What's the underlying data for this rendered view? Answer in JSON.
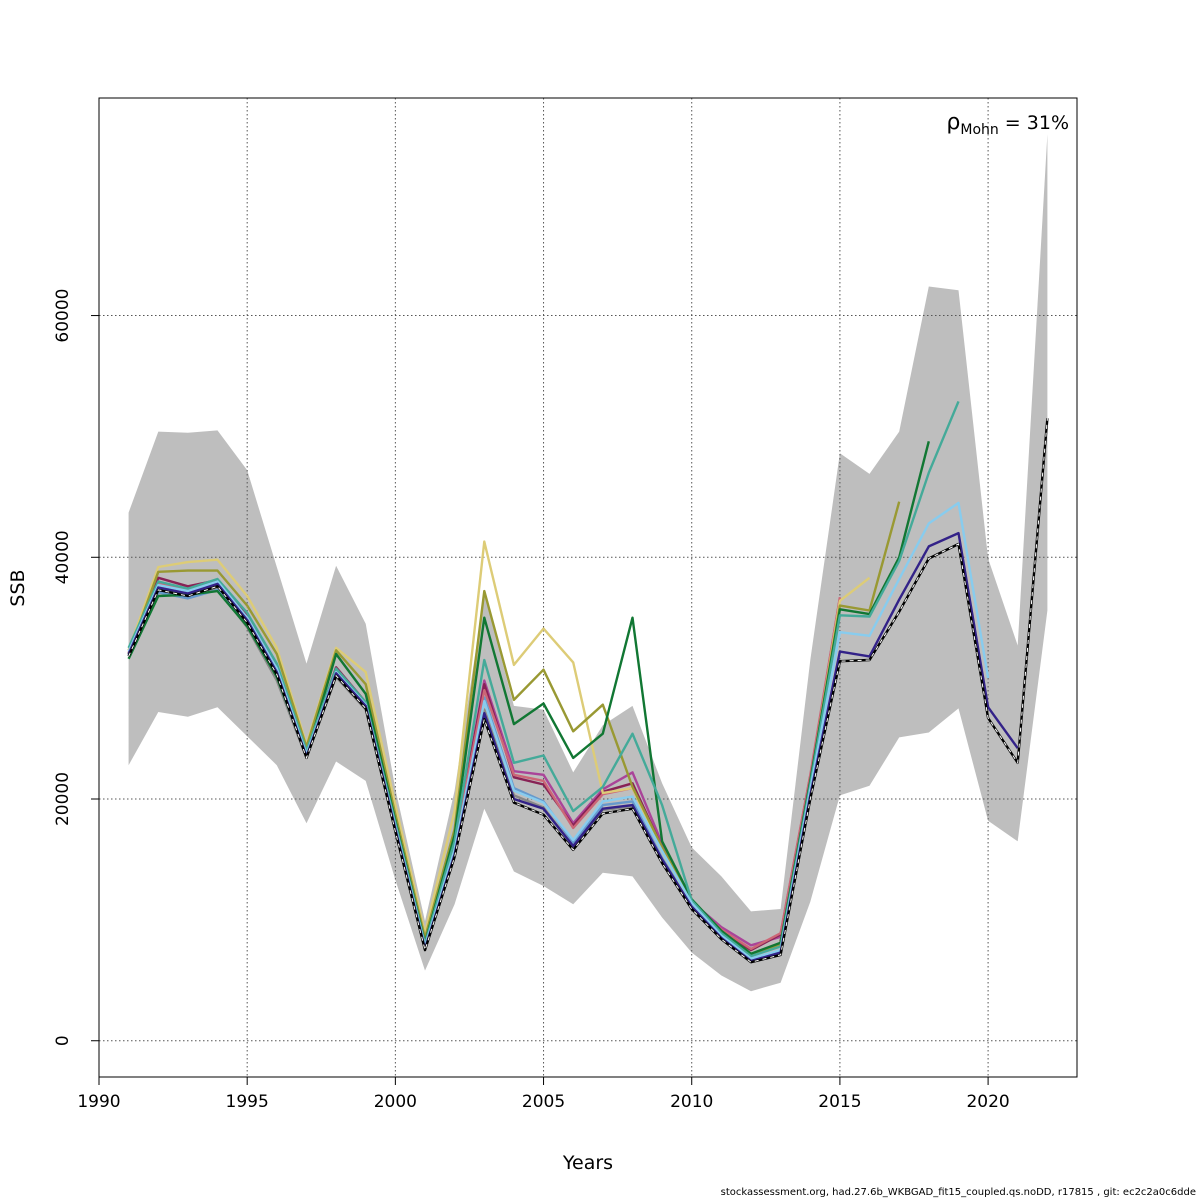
{
  "chart_data": {
    "type": "line",
    "title": "",
    "xlabel": "Years",
    "ylabel": "SSB",
    "xlim": [
      1990,
      2023
    ],
    "ylim": [
      -3000,
      78000
    ],
    "x_ticks": [
      1990,
      1995,
      2000,
      2005,
      2010,
      2015,
      2020
    ],
    "y_ticks": [
      0,
      20000,
      40000,
      60000
    ],
    "grid": true,
    "annotation": {
      "symbol": "ρ",
      "subscript": "Mohn",
      "text": " = 31%"
    },
    "footer": "stockassessment.org, had.27.6b_WKBGAD_fit15_coupled.qs.noDD, r17815 , git: ec2c2a0c6dde",
    "band": {
      "x": [
        1991,
        1992,
        1993,
        1994,
        1995,
        1996,
        1997,
        1998,
        1999,
        2000,
        2001,
        2002,
        2003,
        2004,
        2005,
        2006,
        2007,
        2008,
        2009,
        2010,
        2011,
        2012,
        2013,
        2014,
        2015,
        2016,
        2017,
        2018,
        2019,
        2020,
        2021,
        2022
      ],
      "upper": [
        43700,
        50400,
        50300,
        50500,
        47200,
        39200,
        31200,
        39300,
        34500,
        20800,
        9900,
        20700,
        37000,
        27700,
        27400,
        22200,
        26100,
        27700,
        21300,
        16000,
        13600,
        10700,
        10900,
        31500,
        48600,
        46900,
        50400,
        62400,
        62100,
        39900,
        32700,
        75000
      ],
      "lower": [
        22800,
        27200,
        26800,
        27600,
        25200,
        22800,
        18000,
        23100,
        21500,
        13300,
        5800,
        11300,
        19200,
        14000,
        12800,
        11300,
        13900,
        13600,
        10200,
        7300,
        5400,
        4100,
        4800,
        11500,
        20300,
        21100,
        25100,
        25500,
        27500,
        18200,
        16500,
        35600
      ]
    },
    "series": [
      {
        "color": "#000000",
        "dashed_overlay": true,
        "x": [
          1991,
          1992,
          1993,
          1994,
          1995,
          1996,
          1997,
          1998,
          1999,
          2000,
          2001,
          2002,
          2003,
          2004,
          2005,
          2006,
          2007,
          2008,
          2009,
          2010,
          2011,
          2012,
          2013,
          2014,
          2015,
          2016,
          2017,
          2018,
          2019,
          2020,
          2021,
          2022
        ],
        "y": [
          31800,
          37300,
          36800,
          37600,
          34600,
          30300,
          23400,
          30200,
          27500,
          17300,
          7500,
          15200,
          26600,
          19700,
          18700,
          15800,
          18800,
          19200,
          14700,
          10900,
          8400,
          6500,
          7100,
          20000,
          31400,
          31500,
          35500,
          39900,
          41100,
          26700,
          23000,
          51500
        ]
      },
      {
        "color": "#332288",
        "x": [
          1991,
          1992,
          1993,
          1994,
          1995,
          1996,
          1997,
          1998,
          1999,
          2000,
          2001,
          2002,
          2003,
          2004,
          2005,
          2006,
          2007,
          2008,
          2009,
          2010,
          2011,
          2012,
          2013,
          2014,
          2015,
          2016,
          2017,
          2018,
          2019,
          2020,
          2021
        ],
        "y": [
          32000,
          37500,
          37000,
          37800,
          34800,
          30500,
          23500,
          30400,
          27700,
          17500,
          7600,
          15400,
          27100,
          20000,
          19200,
          16100,
          19200,
          19500,
          15000,
          11100,
          8500,
          6600,
          7300,
          20300,
          32200,
          31800,
          36500,
          40900,
          42000,
          27600,
          24200
        ]
      },
      {
        "color": "#88CCEE",
        "x": [
          1991,
          1992,
          1993,
          1994,
          1995,
          1996,
          1997,
          1998,
          1999,
          2000,
          2001,
          2002,
          2003,
          2004,
          2005,
          2006,
          2007,
          2008,
          2009,
          2010,
          2011,
          2012,
          2013,
          2014,
          2015,
          2016,
          2017,
          2018,
          2019,
          2020
        ],
        "y": [
          32200,
          37700,
          37200,
          38000,
          35000,
          30800,
          23700,
          30500,
          27800,
          17700,
          7800,
          15800,
          28100,
          20700,
          19700,
          16600,
          19800,
          20200,
          15700,
          11400,
          8700,
          6800,
          7500,
          20800,
          33800,
          33500,
          38200,
          42800,
          44500,
          30000
        ]
      },
      {
        "color": "#44AA99",
        "x": [
          1991,
          1992,
          1993,
          1994,
          1995,
          1996,
          1997,
          1998,
          1999,
          2000,
          2001,
          2002,
          2003,
          2004,
          2005,
          2006,
          2007,
          2008,
          2009,
          2010,
          2011,
          2012,
          2013,
          2014,
          2015,
          2016,
          2017,
          2018,
          2019
        ],
        "y": [
          32500,
          38000,
          37400,
          38200,
          35400,
          31200,
          24000,
          30800,
          28000,
          18000,
          8000,
          16500,
          31500,
          23000,
          23600,
          19000,
          21000,
          25400,
          19500,
          11600,
          8900,
          7000,
          7800,
          21200,
          35200,
          35100,
          39700,
          47000,
          52900
        ]
      },
      {
        "color": "#117733",
        "x": [
          1991,
          1992,
          1993,
          1994,
          1995,
          1996,
          1997,
          1998,
          1999,
          2000,
          2001,
          2002,
          2003,
          2004,
          2005,
          2006,
          2007,
          2008,
          2009,
          2010,
          2011,
          2012,
          2013,
          2014,
          2015,
          2016,
          2017,
          2018
        ],
        "y": [
          31600,
          36800,
          36900,
          37200,
          34300,
          30100,
          23600,
          32000,
          28700,
          18200,
          8100,
          17000,
          35000,
          26200,
          27900,
          23400,
          25400,
          35000,
          16500,
          11700,
          9100,
          7200,
          8100,
          21500,
          35700,
          35300,
          40000,
          49600
        ]
      },
      {
        "color": "#999933",
        "x": [
          1991,
          1992,
          1993,
          1994,
          1995,
          1996,
          1997,
          1998,
          1999,
          2000,
          2001,
          2002,
          2003,
          2004,
          2005,
          2006,
          2007,
          2008,
          2009,
          2010,
          2011,
          2012,
          2013,
          2014,
          2015,
          2016,
          2017
        ],
        "y": [
          32000,
          38800,
          38900,
          38900,
          36000,
          32000,
          24300,
          32300,
          29500,
          18700,
          8500,
          17500,
          37200,
          28200,
          30700,
          25600,
          27800,
          21000,
          16000,
          11500,
          9000,
          7100,
          8000,
          21400,
          36000,
          35600,
          44600
        ]
      },
      {
        "color": "#DDCC77",
        "x": [
          1991,
          1992,
          1993,
          1994,
          1995,
          1996,
          1997,
          1998,
          1999,
          2000,
          2001,
          2002,
          2003,
          2004,
          2005,
          2006,
          2007,
          2008,
          2009,
          2010,
          2011,
          2012,
          2013,
          2014,
          2015,
          2016
        ],
        "y": [
          32300,
          39200,
          39600,
          39800,
          36800,
          32500,
          24500,
          32500,
          30500,
          19500,
          8900,
          19000,
          41300,
          31100,
          34100,
          31300,
          20500,
          20900,
          15700,
          11300,
          8800,
          7000,
          7900,
          21300,
          36400,
          38300
        ]
      },
      {
        "color": "#CC6677",
        "x": [
          1991,
          1992,
          1993,
          1994,
          1995,
          1996,
          1997,
          1998,
          1999,
          2000,
          2001,
          2002,
          2003,
          2004,
          2005,
          2006,
          2007,
          2008,
          2009,
          2010,
          2011,
          2012,
          2013,
          2014,
          2015
        ],
        "y": [
          32100,
          37800,
          37300,
          37900,
          35000,
          30700,
          23800,
          30700,
          27900,
          17800,
          8000,
          16200,
          29000,
          22000,
          21500,
          17600,
          20400,
          20900,
          15800,
          11400,
          9200,
          7600,
          8900,
          22000,
          36700
        ]
      },
      {
        "color": "#882255",
        "x": [
          1991,
          1992,
          1993,
          1994,
          1995,
          1996,
          1997,
          1998,
          1999,
          2000,
          2001,
          2002,
          2003,
          2004,
          2005,
          2006,
          2007,
          2008,
          2009,
          2010,
          2011,
          2012,
          2013,
          2014
        ],
        "y": [
          32000,
          38300,
          37600,
          38100,
          35200,
          30900,
          23700,
          30900,
          28000,
          17900,
          8100,
          16300,
          29500,
          21800,
          21200,
          17800,
          20600,
          21300,
          16000,
          11500,
          9000,
          7500,
          8800,
          21900
        ]
      },
      {
        "color": "#AA4499",
        "x": [
          1991,
          1992,
          1993,
          1994,
          1995,
          1996,
          1997,
          1998,
          1999,
          2000,
          2001,
          2002,
          2003,
          2004,
          2005,
          2006,
          2007,
          2008,
          2009,
          2010,
          2011,
          2012,
          2013
        ],
        "y": [
          32300,
          37700,
          37200,
          37800,
          35100,
          30800,
          23700,
          30600,
          27900,
          17800,
          8100,
          16200,
          29800,
          22300,
          22000,
          18000,
          20800,
          22200,
          16300,
          11500,
          9400,
          7900,
          8600
        ]
      },
      {
        "color": "#661100",
        "x": [
          2013,
          2014,
          2015
        ],
        "y": [
          8200,
          21800,
          36600
        ]
      },
      {
        "color": "#6699CC",
        "x": [
          1991,
          1992,
          1993,
          1994,
          1995,
          1996,
          1997,
          1998,
          1999,
          2000,
          2001,
          2002,
          2003,
          2004,
          2005,
          2006,
          2007,
          2008,
          2009,
          2010,
          2011,
          2012,
          2013
        ],
        "y": [
          31900,
          37100,
          36600,
          37300,
          34500,
          30200,
          23500,
          30300,
          27600,
          17400,
          7700,
          15500,
          28400,
          20900,
          19800,
          16400,
          19500,
          19800,
          15100,
          11200,
          8600,
          6800,
          7400
        ]
      },
      {
        "color": "#888888",
        "x": [
          1991,
          1992,
          1993,
          1994,
          1995,
          1996,
          1997,
          1998,
          1999,
          2000,
          2001,
          2002,
          2003,
          2004,
          2005,
          2006,
          2007,
          2008,
          2009,
          2010,
          2011,
          2012,
          2013
        ],
        "y": [
          31900,
          37400,
          36900,
          37400,
          34200,
          29800,
          23400,
          30100,
          27400,
          17300,
          7600,
          15300,
          27400,
          20300,
          19300,
          16100,
          19100,
          19400,
          14800,
          11000,
          8500,
          6600,
          7300
        ]
      }
    ]
  }
}
